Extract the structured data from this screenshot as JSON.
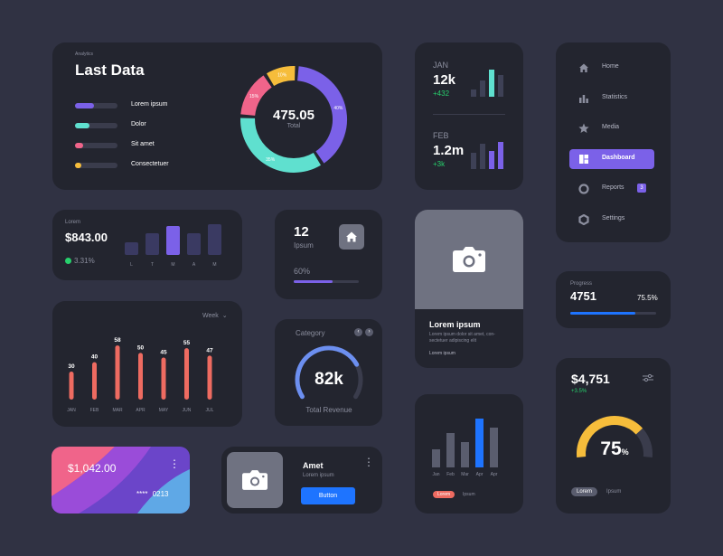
{
  "last_data": {
    "kicker": "Analytics",
    "title": "Last Data",
    "legend": [
      {
        "label": "Lorem ipsum",
        "color": "#7b61e8",
        "fill": 0.45
      },
      {
        "label": "Dolor",
        "color": "#5fe0cf",
        "fill": 0.35
      },
      {
        "label": "Sit amet",
        "color": "#f0648a",
        "fill": 0.2
      },
      {
        "label": "Consectetuer",
        "color": "#f6bd3b",
        "fill": 0.15
      }
    ],
    "donut_value": "475.05",
    "donut_label": "Total",
    "slices": [
      {
        "label": "40%",
        "value": 40,
        "color": "#7b61e8"
      },
      {
        "label": "35%",
        "value": 35,
        "color": "#5fe0cf"
      },
      {
        "label": "15%",
        "value": 15,
        "color": "#f0648a"
      },
      {
        "label": "10%",
        "value": 10,
        "color": "#f6bd3b"
      }
    ]
  },
  "month_stats": {
    "jan": {
      "label": "JAN",
      "value": "12k",
      "delta": "+432"
    },
    "feb": {
      "label": "FEB",
      "value": "1.2m",
      "delta": "+3k"
    }
  },
  "nav": {
    "items": [
      {
        "label": "Home",
        "icon": "home-icon",
        "active": false
      },
      {
        "label": "Statistics",
        "icon": "bar-chart-icon",
        "active": false
      },
      {
        "label": "Media",
        "icon": "star-icon",
        "active": false
      },
      {
        "label": "Dashboard",
        "icon": "dashboard-icon",
        "active": true
      },
      {
        "label": "Reports",
        "icon": "circle-icon",
        "active": false,
        "badge": "3"
      },
      {
        "label": "Settings",
        "icon": "hexagon-icon",
        "active": false
      }
    ]
  },
  "revenue": {
    "kicker": "Lorem",
    "value": "$843.00",
    "change": "3.31%",
    "day_labels": [
      "L",
      "T",
      "M",
      "A",
      "M"
    ]
  },
  "ipsum_card": {
    "count": "12",
    "label": "Ipsum",
    "percent_label": "60%",
    "progress": 0.6
  },
  "photo_card": {
    "title": "Lorem ipsum",
    "body": "Lorem ipsum dolor sit amet, con-\nsectetuer adipiscing elit",
    "link": "Lorem ipsum"
  },
  "progress_card": {
    "kicker": "Progress",
    "value": "4751",
    "percent": "75.5%",
    "progress": 0.755
  },
  "week_chart": {
    "filter": "Week",
    "chart_data": {
      "type": "bar",
      "categories": [
        "JAN",
        "FEB",
        "MAR",
        "APR",
        "MAY",
        "JUN",
        "JUL"
      ],
      "values": [
        30,
        40,
        58,
        50,
        45,
        55,
        47
      ],
      "ylim": [
        0,
        60
      ]
    }
  },
  "category_card": {
    "title": "Category",
    "value": "82k",
    "label": "Total Revenue",
    "progress": 0.75
  },
  "month_bars": {
    "chart_data": {
      "type": "bar",
      "categories": [
        "Jan",
        "Feb",
        "Mar",
        "Apr",
        "Apr"
      ],
      "values": [
        20,
        38,
        28,
        54,
        44
      ],
      "highlight_index": 3
    },
    "legend": [
      "Lorem",
      "Ipsum"
    ]
  },
  "balance_card": {
    "value": "$4,751",
    "change": "+3.5%",
    "gauge_value": "75",
    "gauge_unit": "%",
    "gauge": 0.75,
    "legend": [
      "Lorem",
      "Ipsum"
    ]
  },
  "bank_card": {
    "balance": "$1,042.00",
    "masked": "****",
    "last4": "0213"
  },
  "profile_card": {
    "name": "Amet",
    "sub": "Lorem ipsum",
    "button": "Button"
  },
  "colors": {
    "background": "#303243",
    "card": "#23252f",
    "purple": "#7b61e8",
    "teal": "#5fe0cf",
    "pink": "#f0648a",
    "yellow": "#f6bd3b",
    "blue": "#1e74ff",
    "green": "#27d06c",
    "red_bar": "#ee6b61"
  }
}
